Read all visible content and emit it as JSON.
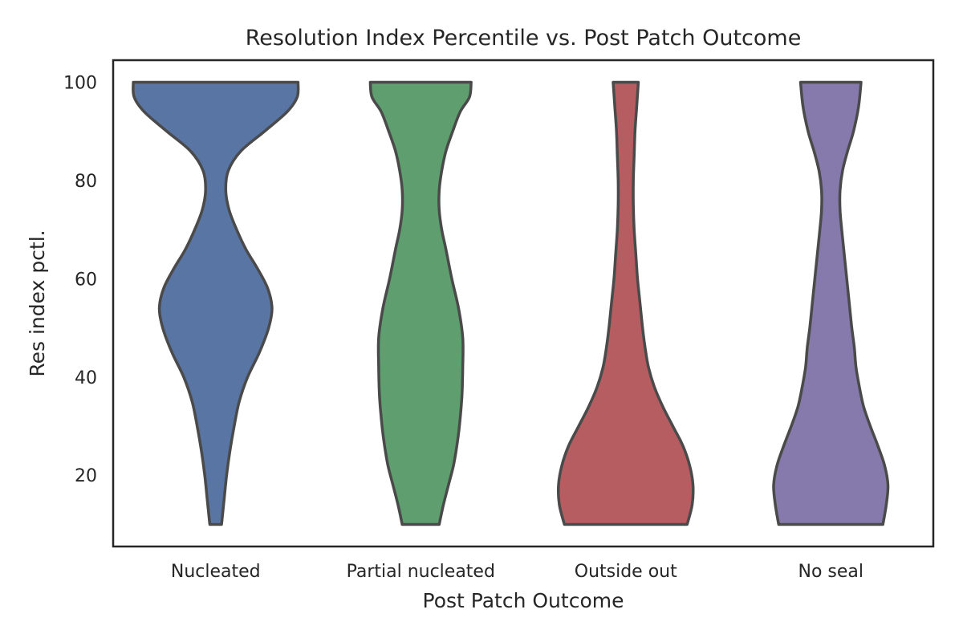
{
  "chart_data": {
    "type": "violin",
    "title": "Resolution Index Percentile vs. Post Patch Outcome",
    "xlabel": "Post Patch Outcome",
    "ylabel": "Res index pctl.",
    "ylim": [
      5.5,
      104.5
    ],
    "yticks": [
      20,
      40,
      60,
      80,
      100
    ],
    "categories": [
      "Nucleated",
      "Partial nucleated",
      "Outside out",
      "No seal"
    ],
    "grid": false,
    "legend": "none",
    "violins": [
      {
        "category": "Nucleated",
        "color": "#5875a4",
        "profile": [
          [
            10,
            0.07
          ],
          [
            15,
            0.1
          ],
          [
            20,
            0.13
          ],
          [
            25,
            0.17
          ],
          [
            30,
            0.22
          ],
          [
            35,
            0.28
          ],
          [
            40,
            0.38
          ],
          [
            45,
            0.52
          ],
          [
            50,
            0.63
          ],
          [
            54,
            0.67
          ],
          [
            58,
            0.62
          ],
          [
            62,
            0.5
          ],
          [
            66,
            0.36
          ],
          [
            70,
            0.25
          ],
          [
            74,
            0.16
          ],
          [
            78,
            0.12
          ],
          [
            82,
            0.15
          ],
          [
            86,
            0.3
          ],
          [
            90,
            0.58
          ],
          [
            94,
            0.85
          ],
          [
            97,
            0.97
          ],
          [
            100,
            0.98
          ]
        ]
      },
      {
        "category": "Partial nucleated",
        "color": "#5f9e6e",
        "profile": [
          [
            10,
            0.22
          ],
          [
            14,
            0.27
          ],
          [
            18,
            0.33
          ],
          [
            22,
            0.39
          ],
          [
            26,
            0.43
          ],
          [
            30,
            0.46
          ],
          [
            36,
            0.49
          ],
          [
            42,
            0.5
          ],
          [
            48,
            0.5
          ],
          [
            54,
            0.45
          ],
          [
            60,
            0.37
          ],
          [
            66,
            0.3
          ],
          [
            70,
            0.25
          ],
          [
            74,
            0.22
          ],
          [
            78,
            0.22
          ],
          [
            82,
            0.25
          ],
          [
            86,
            0.3
          ],
          [
            90,
            0.38
          ],
          [
            94,
            0.47
          ],
          [
            97,
            0.58
          ],
          [
            100,
            0.6
          ]
        ]
      },
      {
        "category": "Outside out",
        "color": "#b55d60",
        "profile": [
          [
            10,
            0.73
          ],
          [
            14,
            0.79
          ],
          [
            18,
            0.8
          ],
          [
            22,
            0.76
          ],
          [
            26,
            0.68
          ],
          [
            30,
            0.56
          ],
          [
            34,
            0.44
          ],
          [
            38,
            0.34
          ],
          [
            42,
            0.27
          ],
          [
            46,
            0.23
          ],
          [
            50,
            0.2
          ],
          [
            55,
            0.17
          ],
          [
            60,
            0.14
          ],
          [
            65,
            0.12
          ],
          [
            70,
            0.1
          ],
          [
            75,
            0.09
          ],
          [
            80,
            0.09
          ],
          [
            85,
            0.1
          ],
          [
            90,
            0.11
          ],
          [
            95,
            0.13
          ],
          [
            100,
            0.15
          ]
        ]
      },
      {
        "category": "No seal",
        "color": "#857aab",
        "profile": [
          [
            10,
            0.62
          ],
          [
            14,
            0.66
          ],
          [
            18,
            0.68
          ],
          [
            22,
            0.64
          ],
          [
            26,
            0.56
          ],
          [
            30,
            0.47
          ],
          [
            34,
            0.39
          ],
          [
            38,
            0.34
          ],
          [
            42,
            0.3
          ],
          [
            46,
            0.28
          ],
          [
            50,
            0.25
          ],
          [
            55,
            0.22
          ],
          [
            60,
            0.19
          ],
          [
            65,
            0.16
          ],
          [
            70,
            0.13
          ],
          [
            74,
            0.11
          ],
          [
            78,
            0.11
          ],
          [
            82,
            0.14
          ],
          [
            86,
            0.2
          ],
          [
            90,
            0.27
          ],
          [
            95,
            0.33
          ],
          [
            100,
            0.36
          ]
        ]
      }
    ]
  }
}
